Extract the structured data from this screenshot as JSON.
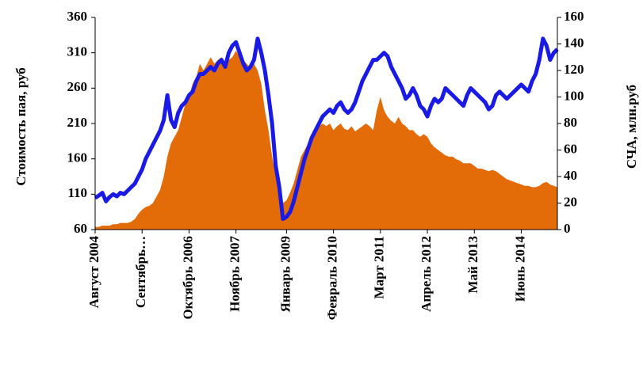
{
  "chart_data": {
    "type": "area-line",
    "y_label": "Стоимость пая, руб",
    "y2_label": "СЧА, млн.руб",
    "ylim": [
      60,
      360
    ],
    "yticks": [
      60,
      110,
      160,
      210,
      260,
      310,
      360
    ],
    "y2lim": [
      0,
      160
    ],
    "y2ticks": [
      0,
      20,
      40,
      60,
      80,
      100,
      120,
      140,
      160
    ],
    "categories": [
      "Август 2004",
      null,
      null,
      null,
      null,
      null,
      null,
      null,
      null,
      null,
      null,
      null,
      null,
      "Сентябрь…",
      null,
      null,
      null,
      null,
      null,
      null,
      null,
      null,
      null,
      null,
      null,
      null,
      "Октябрь 2006",
      null,
      null,
      null,
      null,
      null,
      null,
      null,
      null,
      null,
      null,
      null,
      null,
      "Ноябрь 2007",
      null,
      null,
      null,
      null,
      null,
      null,
      null,
      null,
      null,
      null,
      null,
      null,
      null,
      "Январь 2009",
      null,
      null,
      null,
      null,
      null,
      null,
      null,
      null,
      null,
      null,
      null,
      null,
      "Февраль 2010",
      null,
      null,
      null,
      null,
      null,
      null,
      null,
      null,
      null,
      null,
      null,
      null,
      "Март 2011",
      null,
      null,
      null,
      null,
      null,
      null,
      null,
      null,
      null,
      null,
      null,
      null,
      "Апрель 2012",
      null,
      null,
      null,
      null,
      null,
      null,
      null,
      null,
      null,
      null,
      null,
      null,
      "Май 2013",
      null,
      null,
      null,
      null,
      null,
      null,
      null,
      null,
      null,
      null,
      null,
      null,
      "Июнь 2014",
      null,
      null,
      null,
      null,
      null,
      null,
      null,
      null,
      null,
      null
    ],
    "series": [
      {
        "kind": "area",
        "axis": "y2",
        "color": "#e36c09",
        "values": [
          2,
          2,
          3,
          3,
          3,
          4,
          4,
          5,
          5,
          5,
          6,
          8,
          12,
          15,
          17,
          18,
          20,
          25,
          30,
          40,
          55,
          65,
          70,
          75,
          85,
          95,
          100,
          110,
          115,
          125,
          120,
          125,
          130,
          125,
          128,
          130,
          125,
          128,
          130,
          135,
          130,
          128,
          125,
          122,
          125,
          120,
          110,
          90,
          75,
          55,
          40,
          30,
          20,
          22,
          28,
          35,
          45,
          55,
          60,
          65,
          70,
          75,
          78,
          80,
          78,
          80,
          75,
          78,
          80,
          76,
          75,
          78,
          74,
          76,
          78,
          80,
          78,
          75,
          90,
          100,
          90,
          85,
          82,
          80,
          85,
          80,
          78,
          75,
          75,
          72,
          70,
          72,
          70,
          65,
          62,
          60,
          58,
          56,
          55,
          55,
          53,
          52,
          50,
          50,
          50,
          48,
          46,
          46,
          45,
          44,
          45,
          44,
          42,
          40,
          38,
          37,
          36,
          35,
          34,
          33,
          33,
          32,
          32,
          33,
          35,
          36,
          34,
          33,
          32
        ]
      },
      {
        "kind": "line",
        "axis": "y",
        "color": "#1a1ae6",
        "values": [
          105,
          108,
          112,
          100,
          106,
          110,
          107,
          112,
          110,
          115,
          120,
          125,
          135,
          145,
          160,
          170,
          180,
          190,
          200,
          215,
          250,
          215,
          205,
          225,
          235,
          240,
          250,
          255,
          270,
          280,
          280,
          285,
          290,
          285,
          295,
          300,
          290,
          310,
          320,
          325,
          310,
          295,
          285,
          290,
          300,
          330,
          310,
          285,
          250,
          210,
          150,
          120,
          75,
          78,
          85,
          100,
          120,
          140,
          160,
          175,
          190,
          200,
          210,
          220,
          225,
          230,
          225,
          235,
          240,
          230,
          225,
          230,
          240,
          255,
          270,
          280,
          290,
          300,
          300,
          305,
          310,
          305,
          290,
          280,
          270,
          260,
          245,
          250,
          260,
          250,
          235,
          230,
          220,
          235,
          245,
          240,
          245,
          260,
          255,
          250,
          245,
          240,
          235,
          250,
          260,
          255,
          250,
          245,
          240,
          230,
          235,
          250,
          255,
          250,
          245,
          250,
          255,
          260,
          265,
          260,
          255,
          270,
          280,
          300,
          330,
          320,
          300,
          310,
          315
        ]
      }
    ]
  }
}
